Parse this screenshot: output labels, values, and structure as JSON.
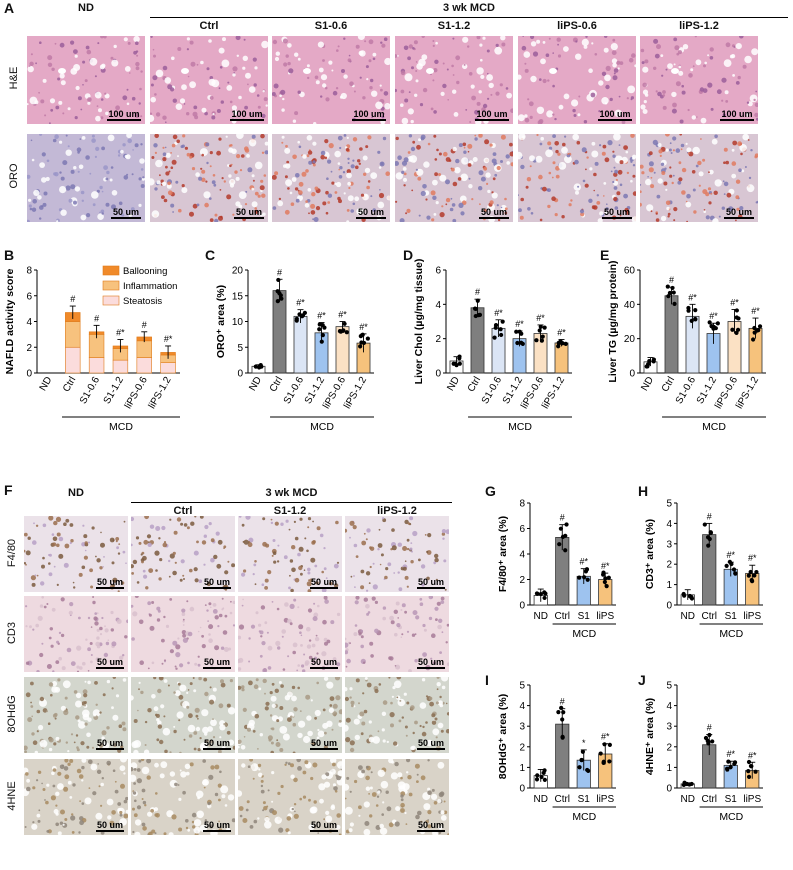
{
  "panel_labels": [
    "A",
    "B",
    "C",
    "D",
    "E",
    "F",
    "G",
    "H",
    "I",
    "J"
  ],
  "panelA": {
    "group_header": "3 wk MCD",
    "columns": [
      "ND",
      "Ctrl",
      "S1-0.6",
      "S1-1.2",
      "liPS-0.6",
      "liPS-1.2"
    ],
    "rows": [
      "H&E",
      "ORO"
    ],
    "scalebars": [
      "100 um",
      "50 um"
    ]
  },
  "panelF": {
    "group_header": "3 wk MCD",
    "columns": [
      "ND",
      "Ctrl",
      "S1-1.2",
      "liPS-1.2"
    ],
    "rows": [
      "F4/80",
      "CD3",
      "8OHdG",
      "4HNE"
    ],
    "scalebar": "50 um"
  },
  "legendB": [
    "Ballooning",
    "Inflammation",
    "Steatosis"
  ],
  "colors": {
    "nd": "#ffffff",
    "ctrl": "#7f7f7f",
    "s1_06": "#dbe5f5",
    "s1_12": "#9ec3ef",
    "lips_06": "#fbe1c4",
    "lips_12": "#f6c27c",
    "ballooning": "#f08a2a",
    "inflammation": "#f7c27e",
    "steatosis": "#fbdcdc"
  },
  "chart_data": [
    {
      "id": "B",
      "type": "bar",
      "ylabel": "NAFLD activity score",
      "group_label": "MCD",
      "categories": [
        "ND",
        "Ctrl",
        "S1-0.6",
        "S1-1.2",
        "liPS-0.6",
        "liPS-1.2"
      ],
      "ylim": [
        0,
        8
      ],
      "yticks": [
        "0",
        "2",
        "4",
        "6",
        "8"
      ],
      "series": [
        {
          "name": "Steatosis",
          "values": [
            0,
            2.0,
            1.2,
            1.0,
            1.2,
            0.8
          ]
        },
        {
          "name": "Inflammation",
          "values": [
            0,
            2.0,
            1.8,
            0.9,
            1.3,
            0.6
          ]
        },
        {
          "name": "Ballooning",
          "values": [
            0,
            0.7,
            0.2,
            0.2,
            0.3,
            0.2
          ]
        }
      ],
      "errors": [
        0,
        0.5,
        0.5,
        0.5,
        0.4,
        0.5
      ],
      "annotations": [
        "",
        "#",
        "#",
        "#*",
        "#",
        "#*"
      ]
    },
    {
      "id": "C",
      "type": "bar",
      "ylabel": "ORO⁺ area (%)",
      "group_label": "MCD",
      "categories": [
        "ND",
        "Ctrl",
        "S1-0.6",
        "S1-1.2",
        "liPS-0.6",
        "liPS-1.2"
      ],
      "values": [
        1.3,
        16.0,
        11.0,
        7.8,
        9.0,
        5.8
      ],
      "errors": [
        0.3,
        2.2,
        1.3,
        2.0,
        1.0,
        1.8
      ],
      "ylim": [
        0,
        20
      ],
      "yticks": [
        "0",
        "5",
        "10",
        "15",
        "20"
      ],
      "annotations": [
        "",
        "#",
        "#*",
        "#*",
        "#*",
        "#*"
      ]
    },
    {
      "id": "D",
      "type": "bar",
      "ylabel": "Liver Chol (µg/mg tissue)",
      "group_label": "MCD",
      "categories": [
        "ND",
        "Ctrl",
        "S1-0.6",
        "S1-1.2",
        "liPS-0.6",
        "liPS-1.2"
      ],
      "values": [
        0.7,
        3.8,
        2.6,
        2.0,
        2.3,
        1.75
      ],
      "errors": [
        0.25,
        0.5,
        0.5,
        0.45,
        0.5,
        0.2
      ],
      "ylim": [
        0,
        6
      ],
      "yticks": [
        "0",
        "2",
        "4",
        "6"
      ],
      "annotations": [
        "",
        "#",
        "#*",
        "#*",
        "#*",
        "#*"
      ]
    },
    {
      "id": "E",
      "type": "bar",
      "ylabel": "Liver TG (µg/mg protein)",
      "group_label": "MCD",
      "categories": [
        "ND",
        "Ctrl",
        "S1-0.6",
        "S1-1.2",
        "liPS-0.6",
        "liPS-1.2"
      ],
      "values": [
        6.5,
        45.0,
        33.0,
        23.0,
        30.0,
        26.0
      ],
      "errors": [
        2.5,
        5.0,
        7.0,
        6.0,
        7.0,
        6.0
      ],
      "ylim": [
        0,
        60
      ],
      "yticks": [
        "0",
        "20",
        "40",
        "60"
      ],
      "annotations": [
        "",
        "#",
        "#*",
        "#*",
        "#*",
        "#*"
      ]
    },
    {
      "id": "G",
      "type": "bar",
      "ylabel": "F4/80⁺ area (%)",
      "group_label": "MCD",
      "categories": [
        "ND",
        "Ctrl",
        "S1",
        "liPS"
      ],
      "values": [
        0.75,
        5.3,
        2.25,
        2.0
      ],
      "errors": [
        0.5,
        1.0,
        0.6,
        0.5
      ],
      "ylim": [
        0,
        8
      ],
      "yticks": [
        "0",
        "2",
        "4",
        "6",
        "8"
      ],
      "annotations": [
        "",
        "#",
        "#*",
        "#*"
      ]
    },
    {
      "id": "H",
      "type": "bar",
      "ylabel": "CD3⁺ area (%)",
      "group_label": "MCD",
      "categories": [
        "ND",
        "Ctrl",
        "S1",
        "liPS"
      ],
      "values": [
        0.5,
        3.45,
        1.75,
        1.55
      ],
      "errors": [
        0.25,
        0.55,
        0.35,
        0.4
      ],
      "ylim": [
        0,
        5
      ],
      "yticks": [
        "0",
        "1",
        "2",
        "3",
        "4",
        "5"
      ],
      "annotations": [
        "",
        "#",
        "#*",
        "#*"
      ]
    },
    {
      "id": "I",
      "type": "bar",
      "ylabel": "8OHdG⁺ area (%)",
      "group_label": "MCD",
      "categories": [
        "ND",
        "Ctrl",
        "S1",
        "liPS"
      ],
      "values": [
        0.6,
        3.1,
        1.35,
        1.65
      ],
      "errors": [
        0.3,
        0.75,
        0.5,
        0.5
      ],
      "ylim": [
        0,
        5
      ],
      "yticks": [
        "0",
        "1",
        "2",
        "3",
        "4",
        "5"
      ],
      "annotations": [
        "",
        "#",
        "*",
        "#*"
      ]
    },
    {
      "id": "J",
      "type": "bar",
      "ylabel": "4HNE⁺ area (%)",
      "group_label": "MCD",
      "categories": [
        "ND",
        "Ctrl",
        "S1",
        "liPS"
      ],
      "values": [
        0.2,
        2.1,
        1.1,
        0.85
      ],
      "errors": [
        0.05,
        0.5,
        0.2,
        0.4
      ],
      "ylim": [
        0,
        5
      ],
      "yticks": [
        "0",
        "1",
        "2",
        "3",
        "4",
        "5"
      ],
      "annotations": [
        "",
        "#",
        "#*",
        "#*"
      ]
    }
  ]
}
